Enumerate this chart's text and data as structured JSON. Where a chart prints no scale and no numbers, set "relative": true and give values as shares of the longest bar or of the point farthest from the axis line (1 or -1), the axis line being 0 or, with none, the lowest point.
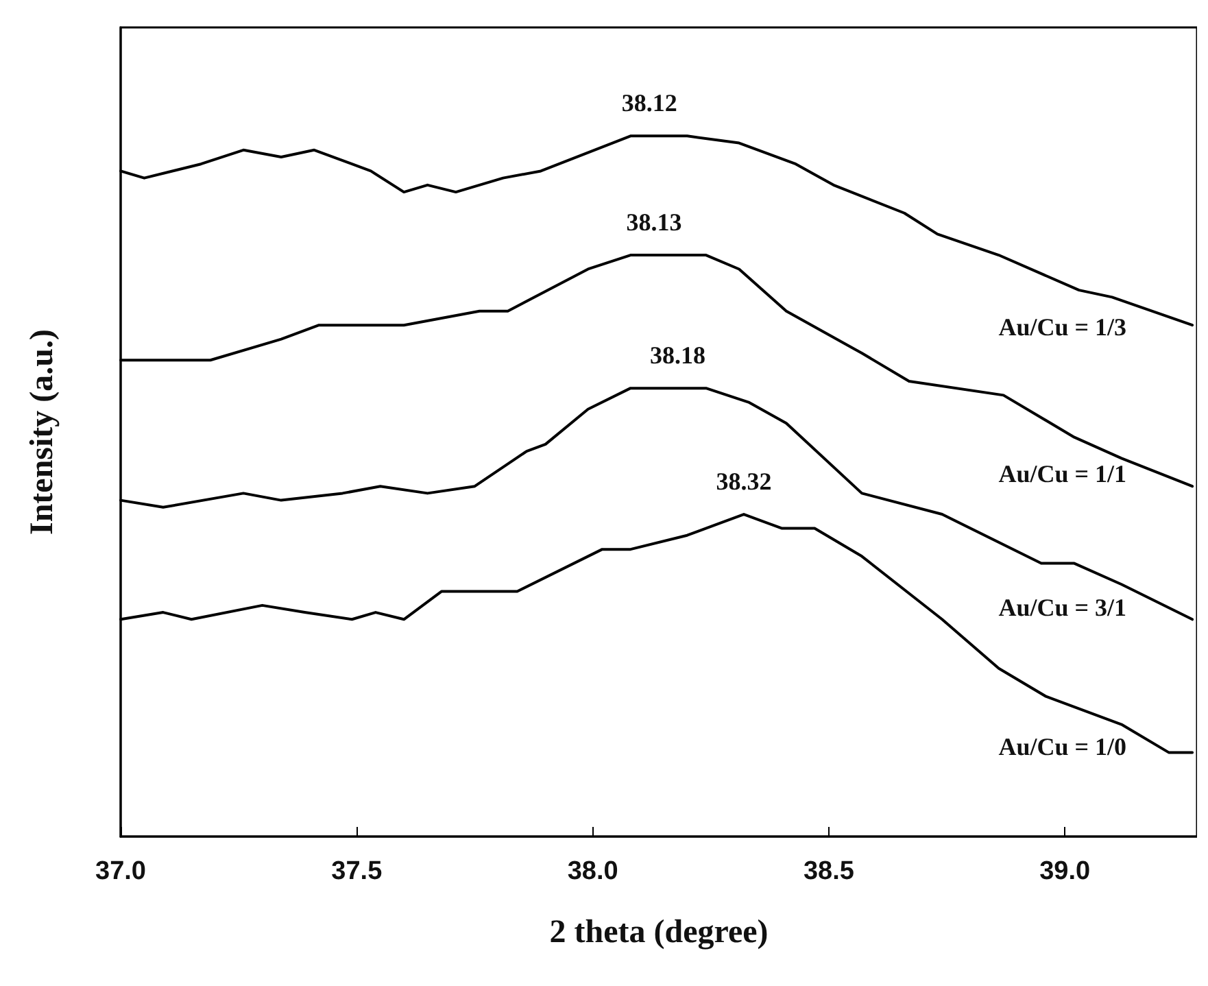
{
  "chart_data": {
    "type": "line",
    "relative": true,
    "xlabel": "2 theta (degree)",
    "ylabel": "Intensity (a.u.)",
    "xlim": [
      37.0,
      39.28
    ],
    "xticks": [
      {
        "value": 37,
        "label": "37.0"
      },
      {
        "value": 37.5,
        "label": "37.5"
      },
      {
        "value": 38,
        "label": "38.0"
      },
      {
        "value": 38.5,
        "label": "38.5"
      },
      {
        "value": 39,
        "label": "39.0"
      }
    ],
    "grid": false,
    "legend": false,
    "marker": "none",
    "line_style": "solid",
    "series": [
      {
        "name": "Au/Cu = 1/3",
        "color": "#000000",
        "x": [
          37.0,
          37.05,
          37.17,
          37.26,
          37.34,
          37.41,
          37.53,
          37.6,
          37.65,
          37.71,
          37.81,
          37.89,
          38.08,
          38.12,
          38.2,
          38.31,
          38.43,
          38.51,
          38.66,
          38.73,
          38.86,
          39.03,
          39.1,
          39.27
        ],
        "values": [
          0.95,
          0.94,
          0.96,
          0.98,
          0.97,
          0.98,
          0.95,
          0.92,
          0.93,
          0.92,
          0.94,
          0.95,
          1.0,
          1.0,
          1.0,
          0.99,
          0.96,
          0.93,
          0.89,
          0.86,
          0.83,
          0.78,
          0.77,
          0.73
        ]
      },
      {
        "name": "Au/Cu = 1/1",
        "color": "#000000",
        "x": [
          37.0,
          37.19,
          37.34,
          37.42,
          37.51,
          37.6,
          37.76,
          37.82,
          37.99,
          38.08,
          38.24,
          38.31,
          38.41,
          38.57,
          38.67,
          38.87,
          39.02,
          39.12,
          39.27
        ],
        "values": [
          0.68,
          0.68,
          0.71,
          0.73,
          0.73,
          0.73,
          0.75,
          0.75,
          0.81,
          0.83,
          0.83,
          0.81,
          0.75,
          0.69,
          0.65,
          0.63,
          0.57,
          0.54,
          0.5
        ]
      },
      {
        "name": "Au/Cu = 3/1",
        "color": "#000000",
        "x": [
          37.0,
          37.09,
          37.26,
          37.34,
          37.47,
          37.55,
          37.65,
          37.75,
          37.86,
          37.9,
          37.99,
          38.08,
          38.24,
          38.33,
          38.41,
          38.57,
          38.74,
          38.95,
          39.02,
          39.12,
          39.27
        ],
        "values": [
          0.48,
          0.47,
          0.49,
          0.48,
          0.49,
          0.5,
          0.49,
          0.5,
          0.55,
          0.56,
          0.61,
          0.64,
          0.64,
          0.62,
          0.59,
          0.49,
          0.46,
          0.39,
          0.39,
          0.36,
          0.31
        ]
      },
      {
        "name": "Au/Cu = 1/0",
        "color": "#000000",
        "x": [
          37.0,
          37.09,
          37.15,
          37.3,
          37.39,
          37.49,
          37.54,
          37.6,
          37.68,
          37.84,
          38.02,
          38.08,
          38.2,
          38.32,
          38.4,
          38.47,
          38.57,
          38.74,
          38.86,
          38.96,
          39.12,
          39.22,
          39.27
        ],
        "values": [
          0.31,
          0.32,
          0.31,
          0.33,
          0.32,
          0.31,
          0.32,
          0.31,
          0.35,
          0.35,
          0.41,
          0.41,
          0.43,
          0.46,
          0.44,
          0.44,
          0.4,
          0.31,
          0.24,
          0.2,
          0.16,
          0.12,
          0.12
        ]
      }
    ],
    "annotations": [
      {
        "text": "38.12",
        "x": 38.12,
        "y": 1.0
      },
      {
        "text": "38.13",
        "x": 38.13,
        "y": 0.83
      },
      {
        "text": "38.18",
        "x": 38.18,
        "y": 0.64
      },
      {
        "text": "38.32",
        "x": 38.32,
        "y": 0.46
      }
    ]
  }
}
